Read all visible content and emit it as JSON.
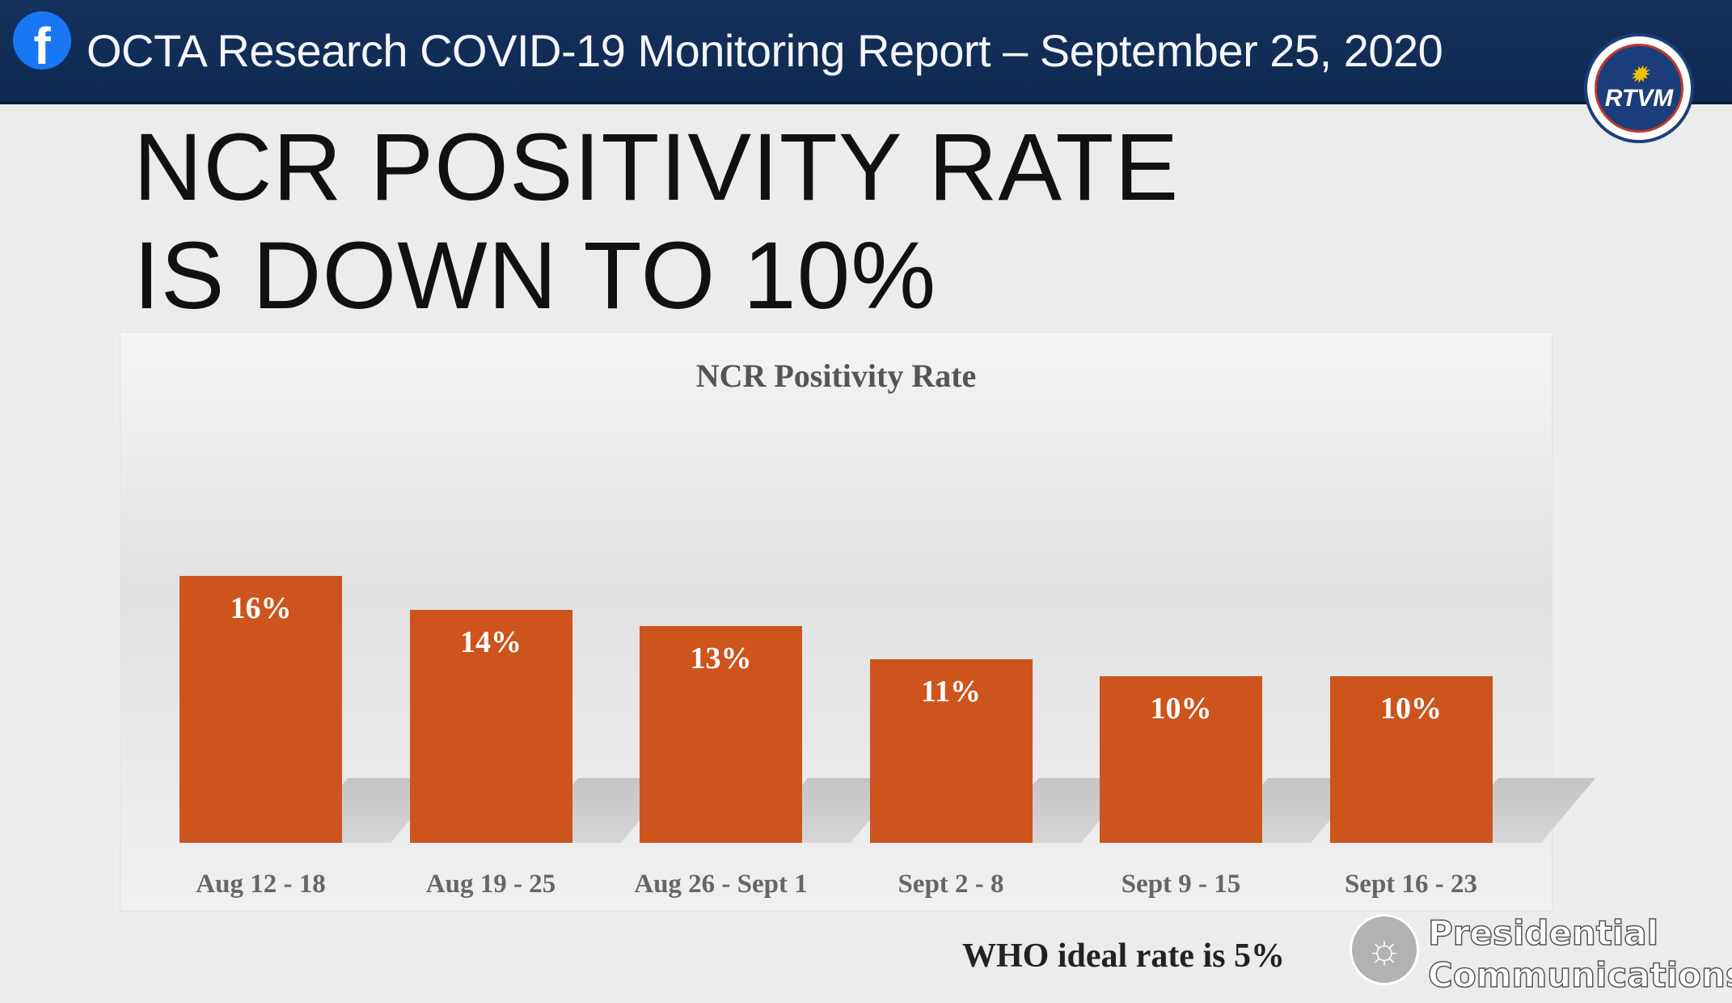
{
  "header": {
    "title": "OCTA Research COVID-19 Monitoring Report – September 25, 2020",
    "facebook_icon": "facebook-icon",
    "broadcaster_logo": "RTVM"
  },
  "headline": {
    "line1": "NCR POSITIVITY RATE",
    "line2": "IS DOWN TO 10%"
  },
  "chart_data": {
    "type": "bar",
    "title": "NCR Positivity Rate",
    "categories": [
      "Aug 12 - 18",
      "Aug 19 - 25",
      "Aug 26 - Sept 1",
      "Sept 2 - 8",
      "Sept 9 - 15",
      "Sept 16 - 23"
    ],
    "values": [
      16,
      14,
      13,
      11,
      10,
      10
    ],
    "data_labels": [
      "16%",
      "14%",
      "13%",
      "11%",
      "10%",
      "10%"
    ],
    "xlabel": "",
    "ylabel": "",
    "grid": false,
    "bar_color": "#cd541d"
  },
  "footer": {
    "note": "WHO ideal rate is 5%",
    "watermark_line1": "Presidential",
    "watermark_line2": "Communications"
  }
}
